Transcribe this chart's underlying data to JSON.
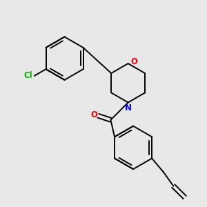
{
  "background_color": "#e8e8e8",
  "bond_color": "#000000",
  "atom_colors": {
    "Cl": "#00bb00",
    "O": "#ff0000",
    "N": "#0000ff",
    "C": "#000000"
  },
  "figsize": [
    3.0,
    3.0
  ],
  "dpi": 100
}
